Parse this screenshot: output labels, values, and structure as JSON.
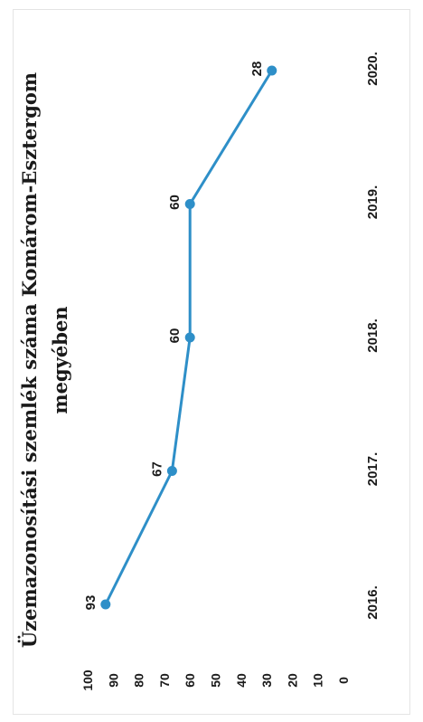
{
  "chart_data": {
    "type": "line",
    "title": "Üzemazonosítási szemlék száma Komárom-Esztergom",
    "subtitle": "megyében",
    "categories": [
      "2016.",
      "2017.",
      "2018.",
      "2019.",
      "2020."
    ],
    "series": [
      {
        "values": [
          93,
          67,
          60,
          60,
          28
        ]
      }
    ],
    "ylim": [
      0,
      100
    ],
    "yticks": [
      0,
      10,
      20,
      30,
      40,
      50,
      60,
      70,
      80,
      90,
      100
    ],
    "data_labels": [
      "93",
      "67",
      "60",
      "60",
      "28"
    ],
    "grid": false,
    "legend": "none",
    "orientation": "rotated-90-ccw",
    "colors": {
      "line": "#2e8fc8",
      "marker": "#2e8fc8"
    }
  }
}
